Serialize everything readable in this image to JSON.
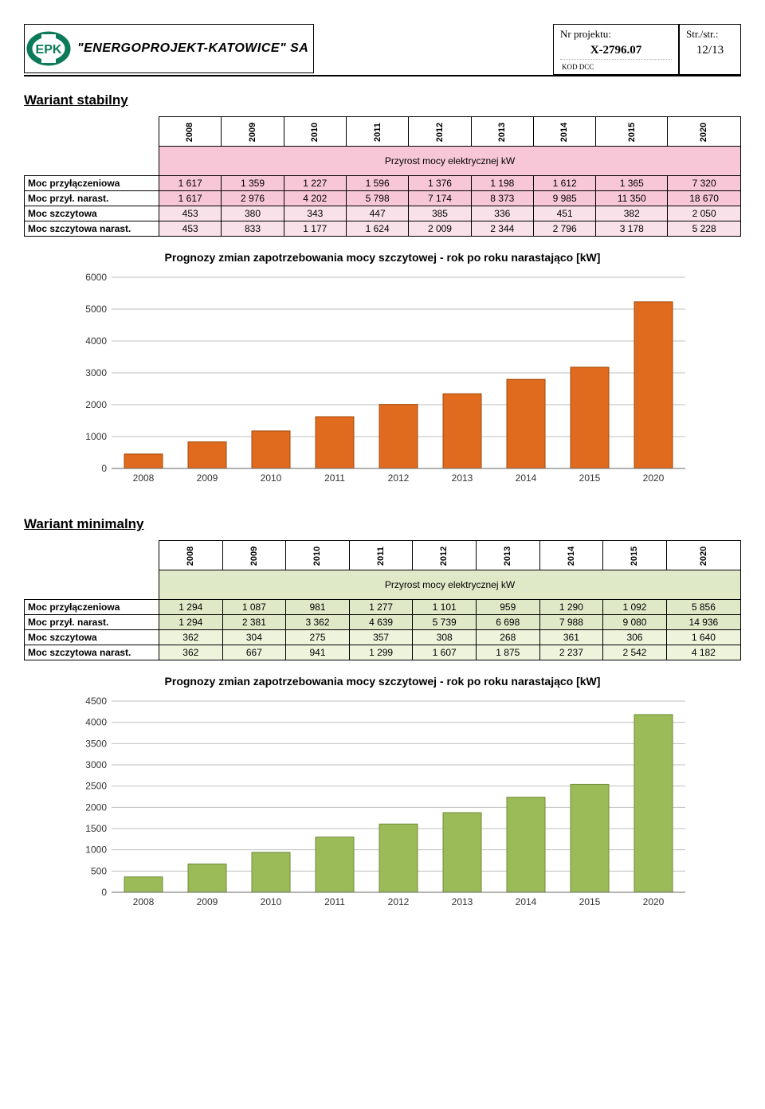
{
  "header": {
    "company": "\"ENERGOPROJEKT-KATOWICE\" SA",
    "projLabel": "Nr projektu:",
    "projValue": "X-2796.07",
    "pageLabel": "Str./str.:",
    "pageValue": "12/13",
    "kod": "KOD DCC"
  },
  "stabilny": {
    "title": "Wariant stabilny",
    "years": [
      "2008",
      "2009",
      "2010",
      "2011",
      "2012",
      "2013",
      "2014",
      "2015",
      "2020"
    ],
    "rowHeader": "Przyrost mocy elektrycznej kW",
    "rows": [
      {
        "label": "Moc przyłączeniowa",
        "cls": "",
        "cells": [
          "1 617",
          "1 359",
          "1 227",
          "1 596",
          "1 376",
          "1 198",
          "1 612",
          "1 365",
          "7 320"
        ]
      },
      {
        "label": "Moc przył. narast.",
        "cls": "",
        "cells": [
          "1 617",
          "2 976",
          "4 202",
          "5 798",
          "7 174",
          "8 373",
          "9 985",
          "11 350",
          "18 670"
        ]
      },
      {
        "label": "Moc szczytowa",
        "cls": "sz",
        "cells": [
          "453",
          "380",
          "343",
          "447",
          "385",
          "336",
          "451",
          "382",
          "2 050"
        ]
      },
      {
        "label": "Moc szczytowa narast.",
        "cls": "sz",
        "cells": [
          "453",
          "833",
          "1 177",
          "1 624",
          "2 009",
          "2 344",
          "2 796",
          "3 178",
          "5 228"
        ]
      }
    ],
    "chart": {
      "title": "Prognozy zmian zapotrzebowania mocy szczytowej - rok po roku narastająco [kW]",
      "categories": [
        "2008",
        "2009",
        "2010",
        "2011",
        "2012",
        "2013",
        "2014",
        "2015",
        "2020"
      ],
      "values": [
        453,
        833,
        1177,
        1624,
        2009,
        2344,
        2796,
        3178,
        5228
      ],
      "ylim": [
        0,
        6000
      ],
      "ytick_step": 1000,
      "bar_color": "#e06b1f",
      "bar_border": "#a04808",
      "background_color": "#ffffff",
      "grid_color": "#bfbfbf",
      "axis_font": 12,
      "title_font": 14,
      "bar_width": 0.6
    }
  },
  "minimalny": {
    "title": "Wariant minimalny",
    "years": [
      "2008",
      "2009",
      "2010",
      "2011",
      "2012",
      "2013",
      "2014",
      "2015",
      "2020"
    ],
    "rowHeader": "Przyrost mocy elektrycznej kW",
    "rows": [
      {
        "label": "Moc przyłączeniowa",
        "cls": "",
        "cells": [
          "1 294",
          "1 087",
          "981",
          "1 277",
          "1 101",
          "959",
          "1 290",
          "1 092",
          "5 856"
        ]
      },
      {
        "label": "Moc przył. narast.",
        "cls": "",
        "cells": [
          "1 294",
          "2 381",
          "3 362",
          "4 639",
          "5 739",
          "6 698",
          "7 988",
          "9 080",
          "14 936"
        ]
      },
      {
        "label": "Moc szczytowa",
        "cls": "sz",
        "cells": [
          "362",
          "304",
          "275",
          "357",
          "308",
          "268",
          "361",
          "306",
          "1 640"
        ]
      },
      {
        "label": "Moc szczytowa narast.",
        "cls": "sz",
        "cells": [
          "362",
          "667",
          "941",
          "1 299",
          "1 607",
          "1 875",
          "2 237",
          "2 542",
          "4 182"
        ]
      }
    ],
    "chart": {
      "title": "Prognozy zmian zapotrzebowania mocy szczytowej - rok po roku narastająco [kW]",
      "categories": [
        "2008",
        "2009",
        "2010",
        "2011",
        "2012",
        "2013",
        "2014",
        "2015",
        "2020"
      ],
      "values": [
        362,
        667,
        941,
        1299,
        1607,
        1875,
        2237,
        2542,
        4182
      ],
      "ylim": [
        0,
        4500
      ],
      "ytick_step": 500,
      "bar_color": "#9bbb59",
      "bar_border": "#6d8b36",
      "background_color": "#ffffff",
      "grid_color": "#bfbfbf",
      "axis_font": 12,
      "title_font": 14,
      "bar_width": 0.6
    }
  }
}
